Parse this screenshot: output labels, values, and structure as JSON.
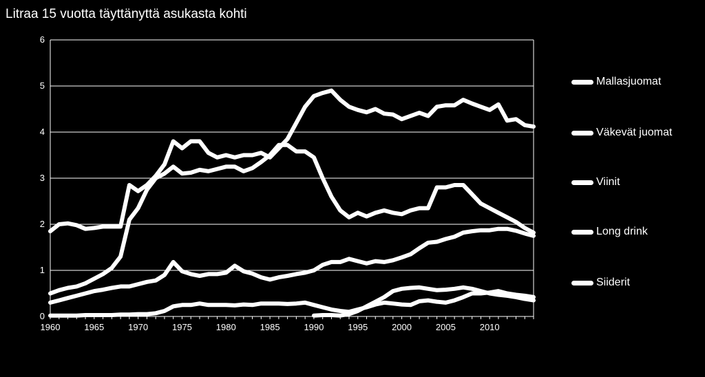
{
  "chart_data": {
    "type": "line",
    "title": "Litraa 15 vuotta täyttänyttä  asukasta kohti",
    "xlabel": "",
    "ylabel": "",
    "xlim": [
      1960,
      2015
    ],
    "ylim": [
      0,
      6
    ],
    "x_ticks": [
      "1960",
      "1965",
      "1970",
      "1975",
      "1980",
      "1985",
      "1990",
      "1995",
      "2000",
      "2005",
      "2010"
    ],
    "y_ticks": [
      "0",
      "1",
      "2",
      "3",
      "4",
      "5",
      "6"
    ],
    "grid": "horizontal",
    "legend_position": "right",
    "series": [
      {
        "name": "Mallasjuomat",
        "x": [
          1960,
          1961,
          1962,
          1963,
          1964,
          1965,
          1966,
          1967,
          1968,
          1969,
          1970,
          1971,
          1972,
          1973,
          1974,
          1975,
          1976,
          1977,
          1978,
          1979,
          1980,
          1981,
          1982,
          1983,
          1984,
          1985,
          1986,
          1987,
          1988,
          1989,
          1990,
          1991,
          1992,
          1993,
          1994,
          1995,
          1996,
          1997,
          1998,
          1999,
          2000,
          2001,
          2002,
          2003,
          2004,
          2005,
          2006,
          2007,
          2008,
          2009,
          2010,
          2011,
          2012,
          2013,
          2014,
          2015
        ],
        "values": [
          0.5,
          0.57,
          0.62,
          0.65,
          0.72,
          0.82,
          0.92,
          1.05,
          1.3,
          2.1,
          2.35,
          2.75,
          3.0,
          3.1,
          3.25,
          3.1,
          3.12,
          3.18,
          3.15,
          3.2,
          3.25,
          3.25,
          3.15,
          3.22,
          3.35,
          3.5,
          3.72,
          3.72,
          3.58,
          3.58,
          3.45,
          3.0,
          2.6,
          2.3,
          2.15,
          2.25,
          2.17,
          2.25,
          2.3,
          2.25,
          2.22,
          2.3,
          2.35,
          2.35,
          2.8,
          2.8,
          2.85,
          2.85,
          2.65,
          2.45,
          2.35,
          2.25,
          2.15,
          2.05,
          1.92,
          1.82
        ]
      },
      {
        "name": "Väkevät juomat",
        "x": [
          1960,
          1961,
          1962,
          1963,
          1964,
          1965,
          1966,
          1967,
          1968,
          1969,
          1970,
          1971,
          1972,
          1973,
          1974,
          1975,
          1976,
          1977,
          1978,
          1979,
          1980,
          1981,
          1982,
          1983,
          1984,
          1985,
          1986,
          1987,
          1988,
          1989,
          1990,
          1991,
          1992,
          1993,
          1994,
          1995,
          1996,
          1997,
          1998,
          1999,
          2000,
          2001,
          2002,
          2003,
          2004,
          2005,
          2006,
          2007,
          2008,
          2009,
          2010,
          2011,
          2012,
          2013,
          2014,
          2015
        ],
        "values": [
          1.85,
          2.0,
          2.02,
          1.98,
          1.9,
          1.92,
          1.95,
          1.95,
          1.95,
          2.85,
          2.72,
          2.85,
          3.05,
          3.3,
          3.8,
          3.65,
          3.8,
          3.8,
          3.55,
          3.45,
          3.5,
          3.45,
          3.5,
          3.5,
          3.55,
          3.45,
          3.65,
          3.85,
          4.2,
          4.55,
          4.78,
          4.85,
          4.9,
          4.7,
          4.55,
          4.48,
          4.43,
          4.5,
          4.4,
          4.38,
          4.28,
          4.35,
          4.42,
          4.35,
          4.55,
          4.58,
          4.58,
          4.7,
          4.62,
          4.55,
          4.48,
          4.6,
          4.25,
          4.28,
          4.15,
          4.12
        ]
      },
      {
        "name": "Viinit",
        "x": [
          1960,
          1961,
          1962,
          1963,
          1964,
          1965,
          1966,
          1967,
          1968,
          1969,
          1970,
          1971,
          1972,
          1973,
          1974,
          1975,
          1976,
          1977,
          1978,
          1979,
          1980,
          1981,
          1982,
          1983,
          1984,
          1985,
          1986,
          1987,
          1988,
          1989,
          1990,
          1991,
          1992,
          1993,
          1994,
          1995,
          1996,
          1997,
          1998,
          1999,
          2000,
          2001,
          2002,
          2003,
          2004,
          2005,
          2006,
          2007,
          2008,
          2009,
          2010,
          2011,
          2012,
          2013,
          2014,
          2015
        ],
        "values": [
          0.3,
          0.35,
          0.4,
          0.45,
          0.5,
          0.55,
          0.58,
          0.62,
          0.65,
          0.65,
          0.7,
          0.75,
          0.78,
          0.9,
          1.18,
          0.98,
          0.92,
          0.88,
          0.92,
          0.92,
          0.95,
          1.1,
          0.98,
          0.93,
          0.85,
          0.8,
          0.85,
          0.88,
          0.92,
          0.95,
          1.0,
          1.12,
          1.18,
          1.18,
          1.25,
          1.2,
          1.15,
          1.2,
          1.18,
          1.22,
          1.28,
          1.35,
          1.48,
          1.6,
          1.62,
          1.68,
          1.73,
          1.82,
          1.85,
          1.87,
          1.87,
          1.9,
          1.9,
          1.86,
          1.8,
          1.75
        ]
      },
      {
        "name": "Long drink",
        "x": [
          1960,
          1961,
          1962,
          1963,
          1964,
          1965,
          1966,
          1967,
          1968,
          1969,
          1970,
          1971,
          1972,
          1973,
          1974,
          1975,
          1976,
          1977,
          1978,
          1979,
          1980,
          1981,
          1982,
          1983,
          1984,
          1985,
          1986,
          1987,
          1988,
          1989,
          1990,
          1991,
          1992,
          1993,
          1994,
          1995,
          1996,
          1997,
          1998,
          1999,
          2000,
          2001,
          2002,
          2003,
          2004,
          2005,
          2006,
          2007,
          2008,
          2009,
          2010,
          2011,
          2012,
          2013,
          2014,
          2015
        ],
        "values": [
          0.02,
          0.02,
          0.02,
          0.02,
          0.03,
          0.03,
          0.03,
          0.03,
          0.04,
          0.04,
          0.05,
          0.05,
          0.07,
          0.12,
          0.22,
          0.25,
          0.25,
          0.28,
          0.25,
          0.25,
          0.25,
          0.24,
          0.26,
          0.25,
          0.28,
          0.28,
          0.28,
          0.27,
          0.28,
          0.3,
          0.25,
          0.2,
          0.15,
          0.12,
          0.1,
          0.15,
          0.2,
          0.26,
          0.3,
          0.28,
          0.26,
          0.25,
          0.33,
          0.35,
          0.32,
          0.3,
          0.35,
          0.42,
          0.5,
          0.5,
          0.52,
          0.55,
          0.5,
          0.47,
          0.45,
          0.42
        ]
      },
      {
        "name": "Siiderit",
        "x": [
          1990,
          1991,
          1992,
          1993,
          1994,
          1995,
          1996,
          1997,
          1998,
          1999,
          2000,
          2001,
          2002,
          2003,
          2004,
          2005,
          2006,
          2007,
          2008,
          2009,
          2010,
          2011,
          2012,
          2013,
          2014,
          2015
        ],
        "values": [
          0.02,
          0.03,
          0.03,
          0.02,
          0.05,
          0.12,
          0.22,
          0.32,
          0.42,
          0.55,
          0.6,
          0.62,
          0.63,
          0.6,
          0.57,
          0.58,
          0.6,
          0.63,
          0.6,
          0.55,
          0.5,
          0.47,
          0.45,
          0.42,
          0.38,
          0.35
        ]
      }
    ]
  }
}
